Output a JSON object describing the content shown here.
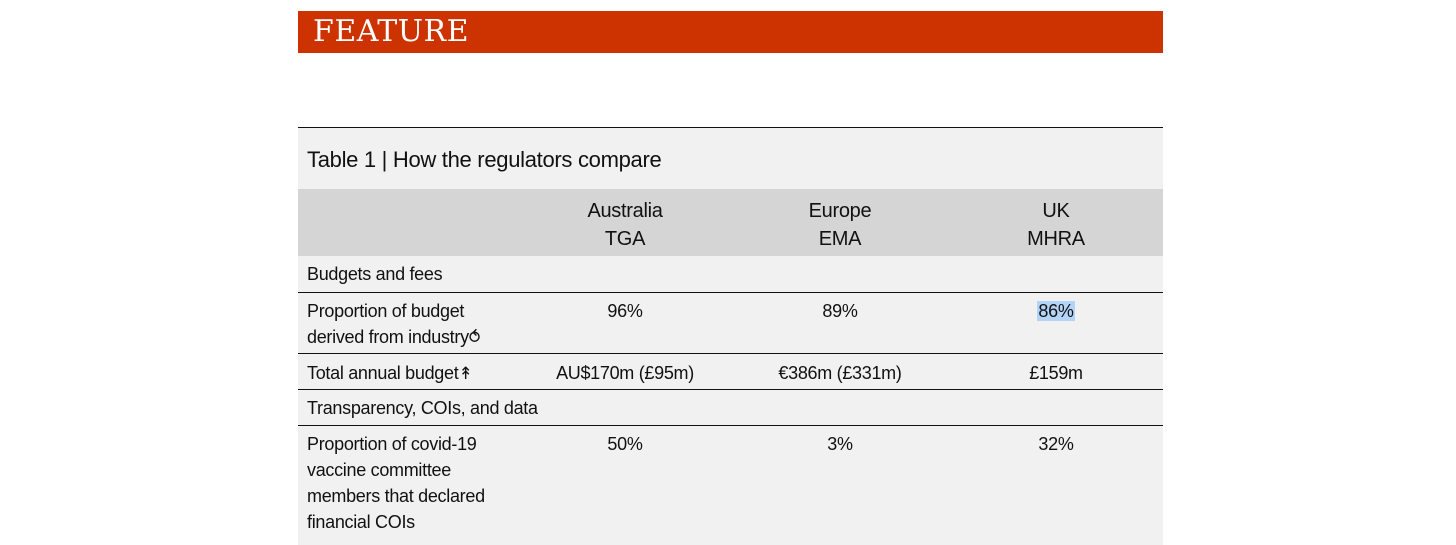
{
  "banner": {
    "label": "FEATURE",
    "color": "#cc3300"
  },
  "table": {
    "title": "Table 1 | How the regulators compare",
    "columns": [
      {
        "line1": "Australia",
        "line2": "TGA"
      },
      {
        "line1": "Europe",
        "line2": "EMA"
      },
      {
        "line1": "UK",
        "line2": "MHRA"
      }
    ],
    "sections": [
      {
        "heading": "Budgets and fees",
        "rows": [
          {
            "label": "Proportion of budget derived from industry",
            "mark": "⥀",
            "values": [
              "96%",
              "89%",
              "86%"
            ],
            "highlighted_value": "86%"
          },
          {
            "label": "Total annual budget",
            "mark": "↟",
            "values": [
              "AU$170m (£95m)",
              "€386m (£331m)",
              "£159m"
            ]
          }
        ]
      },
      {
        "heading": "Transparency, COIs, and data",
        "rows": [
          {
            "label": "Proportion of covid-19 vaccine committee members that declared financial COIs",
            "values": [
              "50%",
              "3%",
              "32%"
            ]
          }
        ]
      }
    ]
  },
  "colors": {
    "table_background": "#f1f1f1",
    "header_background": "#d5d5d5",
    "selection_highlight": "#b3d4f7"
  }
}
